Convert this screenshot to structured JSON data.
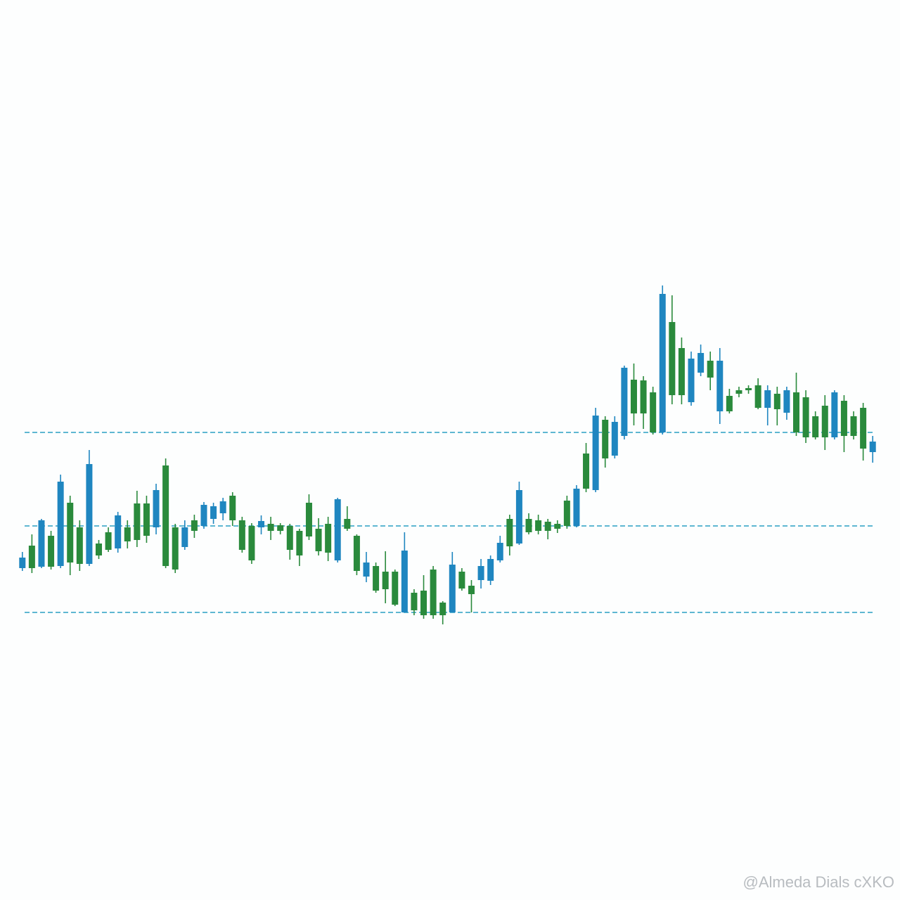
{
  "chart_data": {
    "type": "candlestick",
    "ylim": [
      0,
      1280
    ],
    "up_color": "#1f86c0",
    "down_color": "#2a8a3c",
    "reference_lines": [
      665,
      532,
      409
    ],
    "reference_line_color": "#2a9fc4",
    "open": [
      472,
      504,
      474,
      518,
      475,
      565,
      530,
      478,
      507,
      523,
      500,
      530,
      564,
      564,
      530,
      618,
      530,
      502,
      540,
      532,
      542,
      550,
      575,
      540,
      532,
      530,
      535,
      533,
      532,
      525,
      565,
      528,
      535,
      483,
      542,
      518,
      460,
      475,
      467,
      467,
      409,
      437,
      440,
      470,
      423,
      409,
      467,
      447,
      455,
      454,
      483,
      542,
      507,
      542,
      540,
      538,
      535,
      568,
      532,
      635,
      583,
      683,
      632,
      660,
      740,
      739,
      722,
      665,
      822,
      785,
      708,
      750,
      767,
      695,
      717,
      725,
      728,
      732,
      700,
      720,
      693,
      722,
      715,
      688,
      703,
      658,
      710,
      688,
      700,
      637
    ],
    "high": [
      495,
      520,
      542,
      525,
      605,
      575,
      540,
      640,
      512,
      530,
      552,
      540,
      582,
      575,
      592,
      628,
      535,
      540,
      548,
      566,
      565,
      572,
      580,
      545,
      536,
      547,
      545,
      536,
      535,
      528,
      577,
      543,
      545,
      572,
      560,
      520,
      495,
      480,
      496,
      470,
      523,
      442,
      462,
      475,
      425,
      495,
      472,
      455,
      485,
      490,
      518,
      548,
      595,
      550,
      548,
      542,
      540,
      575,
      590,
      650,
      700,
      688,
      688,
      760,
      763,
      745,
      730,
      874,
      860,
      800,
      780,
      790,
      780,
      785,
      727,
      730,
      732,
      742,
      732,
      730,
      730,
      750,
      725,
      695,
      718,
      725,
      718,
      695,
      707,
      660
    ],
    "low": [
      468,
      465,
      472,
      470,
      472,
      462,
      468,
      475,
      485,
      495,
      494,
      500,
      502,
      508,
      520,
      472,
      465,
      498,
      515,
      528,
      535,
      540,
      532,
      494,
      478,
      520,
      512,
      520,
      484,
      475,
      512,
      490,
      482,
      480,
      525,
      462,
      452,
      437,
      422,
      418,
      409,
      405,
      400,
      400,
      392,
      409,
      440,
      409,
      443,
      448,
      480,
      490,
      505,
      520,
      520,
      513,
      522,
      528,
      530,
      580,
      580,
      615,
      628,
      655,
      675,
      670,
      662,
      662,
      705,
      705,
      703,
      745,
      725,
      677,
      692,
      715,
      720,
      698,
      675,
      675,
      683,
      660,
      650,
      655,
      640,
      655,
      637,
      655,
      625,
      622
    ],
    "close": [
      487,
      472,
      540,
      474,
      595,
      480,
      478,
      620,
      490,
      498,
      547,
      510,
      512,
      518,
      583,
      475,
      470,
      530,
      525,
      562,
      560,
      567,
      540,
      498,
      483,
      539,
      525,
      525,
      498,
      490,
      517,
      496,
      494,
      570,
      528,
      468,
      480,
      440,
      442,
      420,
      497,
      412,
      405,
      405,
      405,
      477,
      443,
      435,
      475,
      485,
      508,
      503,
      583,
      523,
      525,
      525,
      528,
      532,
      585,
      585,
      689,
      628,
      680,
      757,
      692,
      692,
      665,
      862,
      718,
      718,
      770,
      778,
      743,
      767,
      695,
      720,
      725,
      700,
      725,
      698,
      725,
      665,
      658,
      658,
      658,
      722,
      660,
      660,
      642,
      652
    ]
  },
  "watermark": "@Almeda Dials cXKO"
}
